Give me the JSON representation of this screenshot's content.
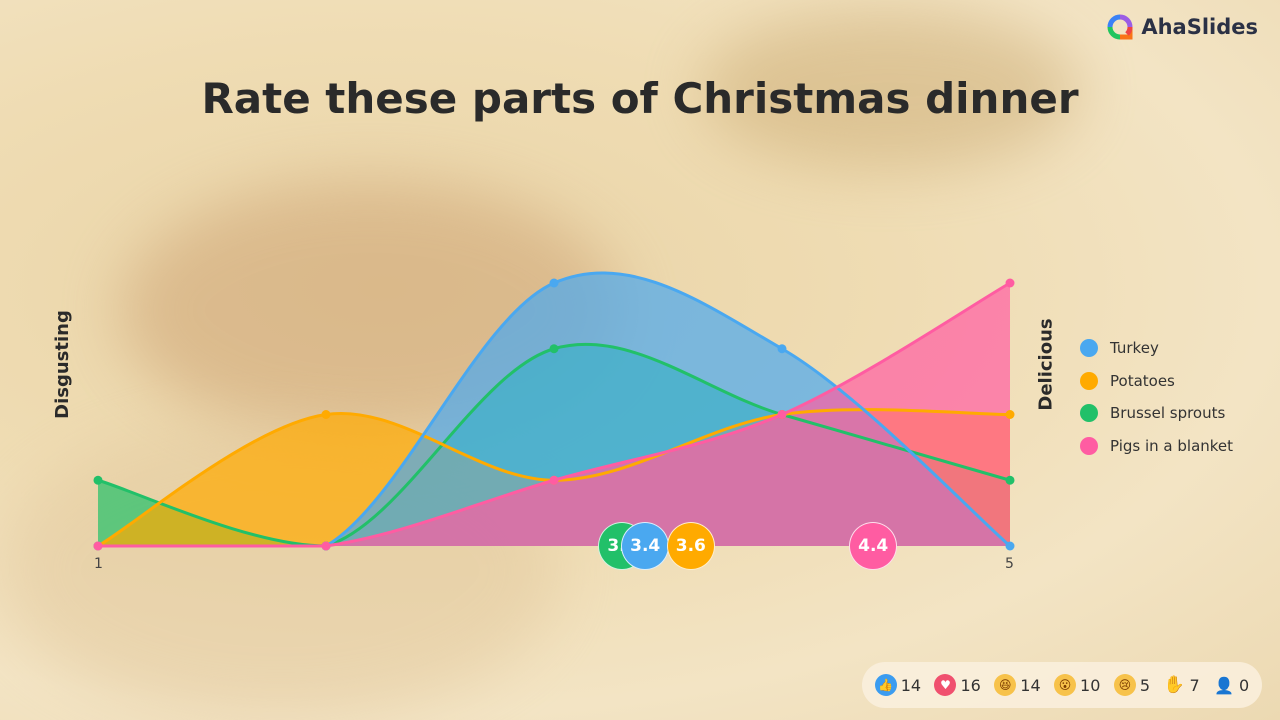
{
  "brand": {
    "name": "AhaSlides"
  },
  "title": "Rate these parts of Christmas dinner",
  "chart_data": {
    "type": "area",
    "title": "Rate these parts of Christmas dinner",
    "x": [
      1,
      2,
      3,
      4,
      5
    ],
    "tick_labels": [
      "1",
      "5"
    ],
    "xlim": [
      1,
      5
    ],
    "ylim": [
      0,
      4
    ],
    "left_label": "Disgusting",
    "right_label": "Delicious",
    "legend_position": "right",
    "grid": false,
    "series": [
      {
        "name": "Brussel sprouts",
        "color": "#22c069",
        "values": [
          1,
          0,
          3,
          2,
          1
        ],
        "average": "3.3"
      },
      {
        "name": "Potatoes",
        "color": "#ffaa00",
        "values": [
          0,
          2,
          1,
          2,
          2
        ],
        "average": "3.6"
      },
      {
        "name": "Turkey",
        "color": "#4aa8f0",
        "values": [
          0,
          0,
          4,
          3,
          0
        ],
        "average": "3.4"
      },
      {
        "name": "Pigs in a blanket",
        "color": "#ff5ca2",
        "values": [
          0,
          0,
          1,
          2,
          4
        ],
        "average": "4.4"
      }
    ]
  },
  "legend": [
    "Turkey",
    "Potatoes",
    "Brussel sprouts",
    "Pigs in a blanket"
  ],
  "legend_colors": [
    "#4aa8f0",
    "#ffaa00",
    "#22c069",
    "#ff5ca2"
  ],
  "reactions": [
    {
      "icon": "thumbs-up-icon",
      "count": "14",
      "color": "#3b9cf0"
    },
    {
      "icon": "heart-icon",
      "count": "16",
      "color": "#f0506e"
    },
    {
      "icon": "laugh-icon",
      "count": "14",
      "color": "#f7c24a"
    },
    {
      "icon": "wow-icon",
      "count": "10",
      "color": "#f7c24a"
    },
    {
      "icon": "sad-icon",
      "count": "5",
      "color": "#f7c24a"
    },
    {
      "icon": "hand-icon",
      "count": "7",
      "color": "#333333"
    },
    {
      "icon": "audience-icon",
      "count": "0",
      "color": "#333333"
    }
  ]
}
